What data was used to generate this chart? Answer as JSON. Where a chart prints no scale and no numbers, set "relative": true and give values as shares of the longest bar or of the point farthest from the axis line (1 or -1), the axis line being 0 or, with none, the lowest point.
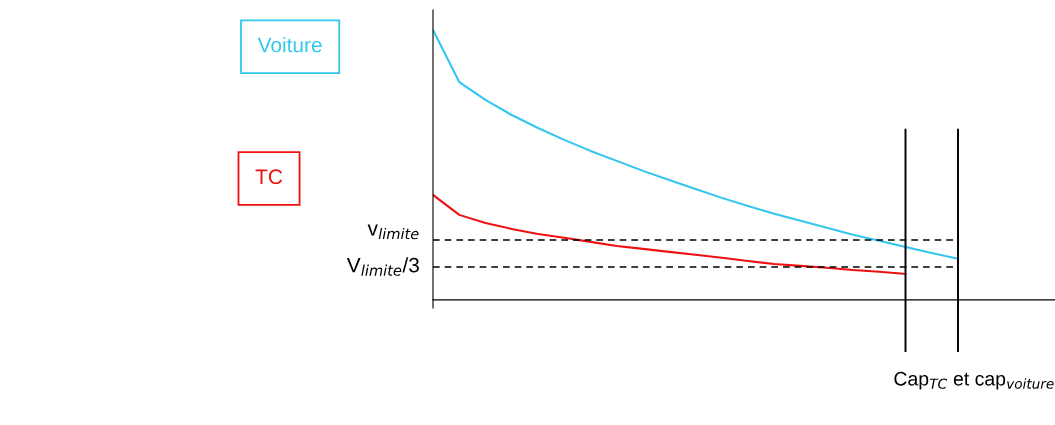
{
  "chart_data": {
    "type": "line",
    "relative": true,
    "xlabel": "Cap$_{TC}$ et cap$_{voiture}$",
    "categories": [
      null,
      null,
      null,
      null,
      null,
      null,
      null,
      null,
      null,
      null,
      null,
      null,
      null,
      null,
      null,
      null,
      null,
      null,
      null,
      null,
      null
    ],
    "series": [
      {
        "name": "Voiture",
        "color": "#33c6ee",
        "values": [
          1.0,
          0.807,
          0.741,
          0.685,
          0.637,
          0.593,
          0.552,
          0.515,
          0.478,
          0.444,
          0.411,
          0.378,
          0.348,
          0.319,
          0.293,
          0.267,
          0.241,
          0.219,
          0.196,
          0.174,
          0.152
        ]
      },
      {
        "name": "TC",
        "color": "#ee1111",
        "values": [
          0.389,
          0.315,
          0.285,
          0.263,
          0.244,
          0.23,
          0.215,
          0.2,
          0.189,
          0.178,
          0.167,
          0.156,
          0.144,
          0.133,
          0.126,
          0.119,
          0.111,
          0.104,
          0.096,
          null,
          null
        ]
      }
    ],
    "ref_lines": [
      {
        "axis": "y",
        "value": 0.222,
        "label": "v$_{limite}$",
        "line_style": "dashed",
        "color": "#000000"
      },
      {
        "axis": "y",
        "value": 0.122,
        "label": "V$_{limite}$/3",
        "line_style": "dashed",
        "color": "#000000"
      }
    ]
  }
}
